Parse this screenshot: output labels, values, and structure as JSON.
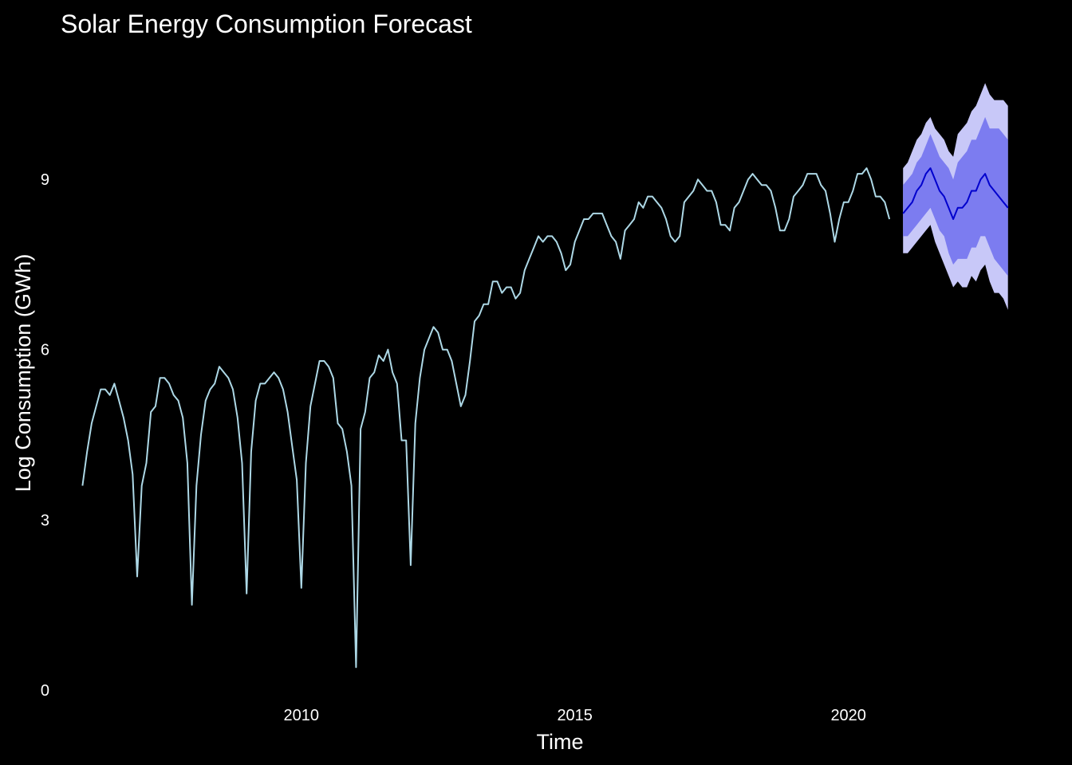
{
  "chart_data": {
    "type": "line",
    "title": "Solar Energy Consumption Forecast",
    "xlabel": "Time",
    "ylabel": "Log Consumption (GWh)",
    "xlim": [
      2005.6,
      2023.3
    ],
    "ylim": [
      -0.2,
      10.9
    ],
    "x_ticks": [
      {
        "value": 2010,
        "label": "2010"
      },
      {
        "value": 2015,
        "label": "2015"
      },
      {
        "value": 2020,
        "label": "2020"
      }
    ],
    "y_ticks": [
      {
        "value": 0,
        "label": "0"
      },
      {
        "value": 3,
        "label": "3"
      },
      {
        "value": 6,
        "label": "6"
      },
      {
        "value": 9,
        "label": "9"
      }
    ],
    "grid": false,
    "colors": {
      "background": "#000000",
      "history_line": "#add8e6",
      "forecast_line": "#0000cd",
      "interval_95": "#c8c8f8",
      "interval_80": "#7c7cf0",
      "text": "#ffffff"
    },
    "series": [
      {
        "name": "",
        "role": "history",
        "start": 2006.0,
        "step": 0.08333,
        "values": [
          3.6,
          4.2,
          4.7,
          5.0,
          5.3,
          5.3,
          5.2,
          5.4,
          5.1,
          4.8,
          4.4,
          3.8,
          2.0,
          3.6,
          4.0,
          4.9,
          5.0,
          5.5,
          5.5,
          5.4,
          5.2,
          5.1,
          4.8,
          4.0,
          1.5,
          3.6,
          4.5,
          5.1,
          5.3,
          5.4,
          5.7,
          5.6,
          5.5,
          5.3,
          4.8,
          4.0,
          1.7,
          4.2,
          5.1,
          5.4,
          5.4,
          5.5,
          5.6,
          5.5,
          5.3,
          4.9,
          4.3,
          3.7,
          1.8,
          4.0,
          5.0,
          5.4,
          5.8,
          5.8,
          5.7,
          5.5,
          4.7,
          4.6,
          4.2,
          3.6,
          0.4,
          4.6,
          4.9,
          5.5,
          5.6,
          5.9,
          5.8,
          6.0,
          5.6,
          5.4,
          4.4,
          4.4,
          2.2,
          4.7,
          5.5,
          6.0,
          6.2,
          6.4,
          6.3,
          6.0,
          6.0,
          5.8,
          5.4,
          5.0,
          5.2,
          5.8,
          6.5,
          6.6,
          6.8,
          6.8,
          7.2,
          7.2,
          7.0,
          7.1,
          7.1,
          6.9,
          7.0,
          7.4,
          7.6,
          7.8,
          8.0,
          7.9,
          8.0,
          8.0,
          7.9,
          7.7,
          7.4,
          7.5,
          7.9,
          8.1,
          8.3,
          8.3,
          8.4,
          8.4,
          8.4,
          8.2,
          8.0,
          7.9,
          7.6,
          8.1,
          8.2,
          8.3,
          8.6,
          8.5,
          8.7,
          8.7,
          8.6,
          8.5,
          8.3,
          8.0,
          7.9,
          8.0,
          8.6,
          8.7,
          8.8,
          9.0,
          8.9,
          8.8,
          8.8,
          8.6,
          8.2,
          8.2,
          8.1,
          8.5,
          8.6,
          8.8,
          9.0,
          9.1,
          9.0,
          8.9,
          8.9,
          8.8,
          8.5,
          8.1,
          8.1,
          8.3,
          8.7,
          8.8,
          8.9,
          9.1,
          9.1,
          9.1,
          8.9,
          8.8,
          8.4,
          7.9,
          8.3,
          8.6,
          8.6,
          8.8,
          9.1,
          9.1,
          9.2,
          9.0,
          8.7,
          8.7,
          8.6,
          8.3
        ]
      },
      {
        "name": "",
        "role": "forecast",
        "start": 2021.0,
        "step": 0.08333,
        "values": [
          8.4,
          8.5,
          8.6,
          8.8,
          8.9,
          9.1,
          9.2,
          9.0,
          8.8,
          8.7,
          8.5,
          8.3,
          8.5,
          8.5,
          8.6,
          8.8,
          8.8,
          9.0,
          9.1,
          8.9,
          8.8,
          8.7,
          8.6,
          8.5
        ],
        "lower_80": [
          8.0,
          8.0,
          8.1,
          8.2,
          8.3,
          8.4,
          8.5,
          8.3,
          8.1,
          8.0,
          7.7,
          7.5,
          7.6,
          7.6,
          7.6,
          7.8,
          7.8,
          8.0,
          8.0,
          7.8,
          7.6,
          7.5,
          7.4,
          7.3
        ],
        "upper_80": [
          8.9,
          9.0,
          9.1,
          9.3,
          9.4,
          9.6,
          9.8,
          9.6,
          9.4,
          9.3,
          9.2,
          9.0,
          9.3,
          9.4,
          9.5,
          9.7,
          9.7,
          9.9,
          10.1,
          9.9,
          9.9,
          9.9,
          9.8,
          9.7
        ],
        "lower_95": [
          7.7,
          7.7,
          7.8,
          7.9,
          8.0,
          8.1,
          8.2,
          7.9,
          7.7,
          7.5,
          7.3,
          7.1,
          7.2,
          7.1,
          7.1,
          7.3,
          7.2,
          7.4,
          7.5,
          7.2,
          7.0,
          7.0,
          6.9,
          6.7
        ],
        "upper_95": [
          9.2,
          9.3,
          9.5,
          9.7,
          9.8,
          10.0,
          10.1,
          9.9,
          9.8,
          9.7,
          9.5,
          9.4,
          9.8,
          9.9,
          10.0,
          10.2,
          10.3,
          10.5,
          10.7,
          10.5,
          10.4,
          10.4,
          10.4,
          10.3
        ]
      }
    ]
  }
}
